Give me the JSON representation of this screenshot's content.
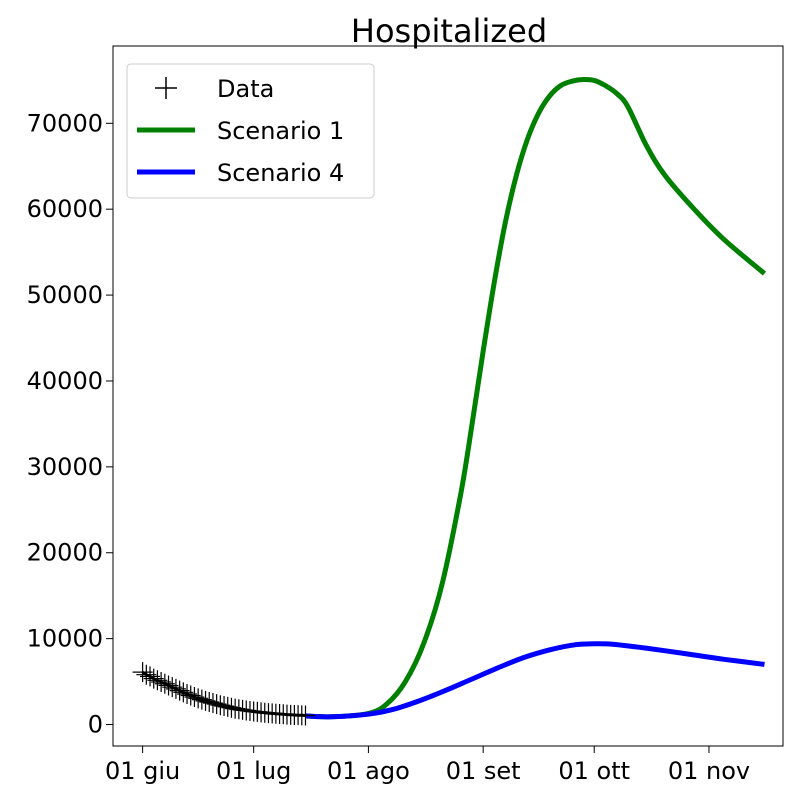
{
  "chart_data": {
    "type": "line",
    "title": "Hospitalized",
    "xlabel": "",
    "ylabel": "",
    "xlim": [
      "2020-05-24",
      "2020-11-21"
    ],
    "ylim": [
      -2500,
      79000
    ],
    "x_ticks": [
      {
        "date": "2020-06-01",
        "label": "01 giu"
      },
      {
        "date": "2020-07-01",
        "label": "01 lug"
      },
      {
        "date": "2020-08-01",
        "label": "01 ago"
      },
      {
        "date": "2020-09-01",
        "label": "01 set"
      },
      {
        "date": "2020-10-01",
        "label": "01 ott"
      },
      {
        "date": "2020-11-01",
        "label": "01 nov"
      }
    ],
    "y_ticks": [
      0,
      10000,
      20000,
      30000,
      40000,
      50000,
      60000,
      70000
    ],
    "grid": false,
    "legend_position": "top-left",
    "series": [
      {
        "name": "Data",
        "kind": "markers",
        "marker": "plus",
        "color": "#000000",
        "dates": [
          "2020-06-01",
          "2020-06-02",
          "2020-06-03",
          "2020-06-04",
          "2020-06-05",
          "2020-06-06",
          "2020-06-07",
          "2020-06-08",
          "2020-06-09",
          "2020-06-10",
          "2020-06-11",
          "2020-06-12",
          "2020-06-13",
          "2020-06-14",
          "2020-06-15",
          "2020-06-16",
          "2020-06-17",
          "2020-06-18",
          "2020-06-19",
          "2020-06-20",
          "2020-06-21",
          "2020-06-22",
          "2020-06-23",
          "2020-06-24",
          "2020-06-25",
          "2020-06-26",
          "2020-06-27",
          "2020-06-28",
          "2020-06-29",
          "2020-06-30",
          "2020-07-01",
          "2020-07-02",
          "2020-07-03",
          "2020-07-04",
          "2020-07-05",
          "2020-07-06",
          "2020-07-07",
          "2020-07-08",
          "2020-07-09",
          "2020-07-10",
          "2020-07-11",
          "2020-07-12",
          "2020-07-13",
          "2020-07-14",
          "2020-07-15"
        ],
        "values": [
          6100,
          5800,
          5600,
          5350,
          5150,
          4950,
          4750,
          4550,
          4350,
          4150,
          3950,
          3750,
          3550,
          3380,
          3200,
          3050,
          2900,
          2750,
          2620,
          2500,
          2380,
          2250,
          2150,
          2050,
          1950,
          1850,
          1780,
          1700,
          1640,
          1580,
          1520,
          1470,
          1420,
          1370,
          1330,
          1300,
          1260,
          1220,
          1190,
          1160,
          1130,
          1110,
          1090,
          1070,
          1050
        ]
      },
      {
        "name": "Scenario 1",
        "kind": "line",
        "color": "#008000",
        "dates": [
          "2020-07-15",
          "2020-07-22",
          "2020-08-01",
          "2020-08-06",
          "2020-08-11",
          "2020-08-16",
          "2020-08-21",
          "2020-08-26",
          "2020-08-29",
          "2020-09-01",
          "2020-09-04",
          "2020-09-07",
          "2020-09-10",
          "2020-09-13",
          "2020-09-16",
          "2020-09-19",
          "2020-09-22",
          "2020-09-25",
          "2020-09-28",
          "2020-10-01",
          "2020-10-04",
          "2020-10-07",
          "2020-10-10",
          "2020-10-15",
          "2020-10-20",
          "2020-10-28",
          "2020-11-05",
          "2020-11-16"
        ],
        "values": [
          1000,
          900,
          1300,
          2400,
          5000,
          9500,
          16500,
          27000,
          35000,
          43500,
          51500,
          58500,
          64000,
          68200,
          71200,
          73200,
          74400,
          74900,
          75100,
          75000,
          74400,
          73500,
          72000,
          67500,
          64000,
          60000,
          56500,
          52500
        ]
      },
      {
        "name": "Scenario 4",
        "kind": "line",
        "color": "#0000ff",
        "dates": [
          "2020-07-15",
          "2020-07-22",
          "2020-08-01",
          "2020-08-08",
          "2020-08-15",
          "2020-08-22",
          "2020-08-29",
          "2020-09-05",
          "2020-09-12",
          "2020-09-19",
          "2020-09-26",
          "2020-10-01",
          "2020-10-06",
          "2020-10-13",
          "2020-10-20",
          "2020-10-28",
          "2020-11-05",
          "2020-11-16"
        ],
        "values": [
          1000,
          900,
          1200,
          1800,
          2800,
          4000,
          5300,
          6600,
          7800,
          8700,
          9300,
          9400,
          9350,
          9000,
          8600,
          8100,
          7600,
          7000
        ]
      }
    ]
  }
}
